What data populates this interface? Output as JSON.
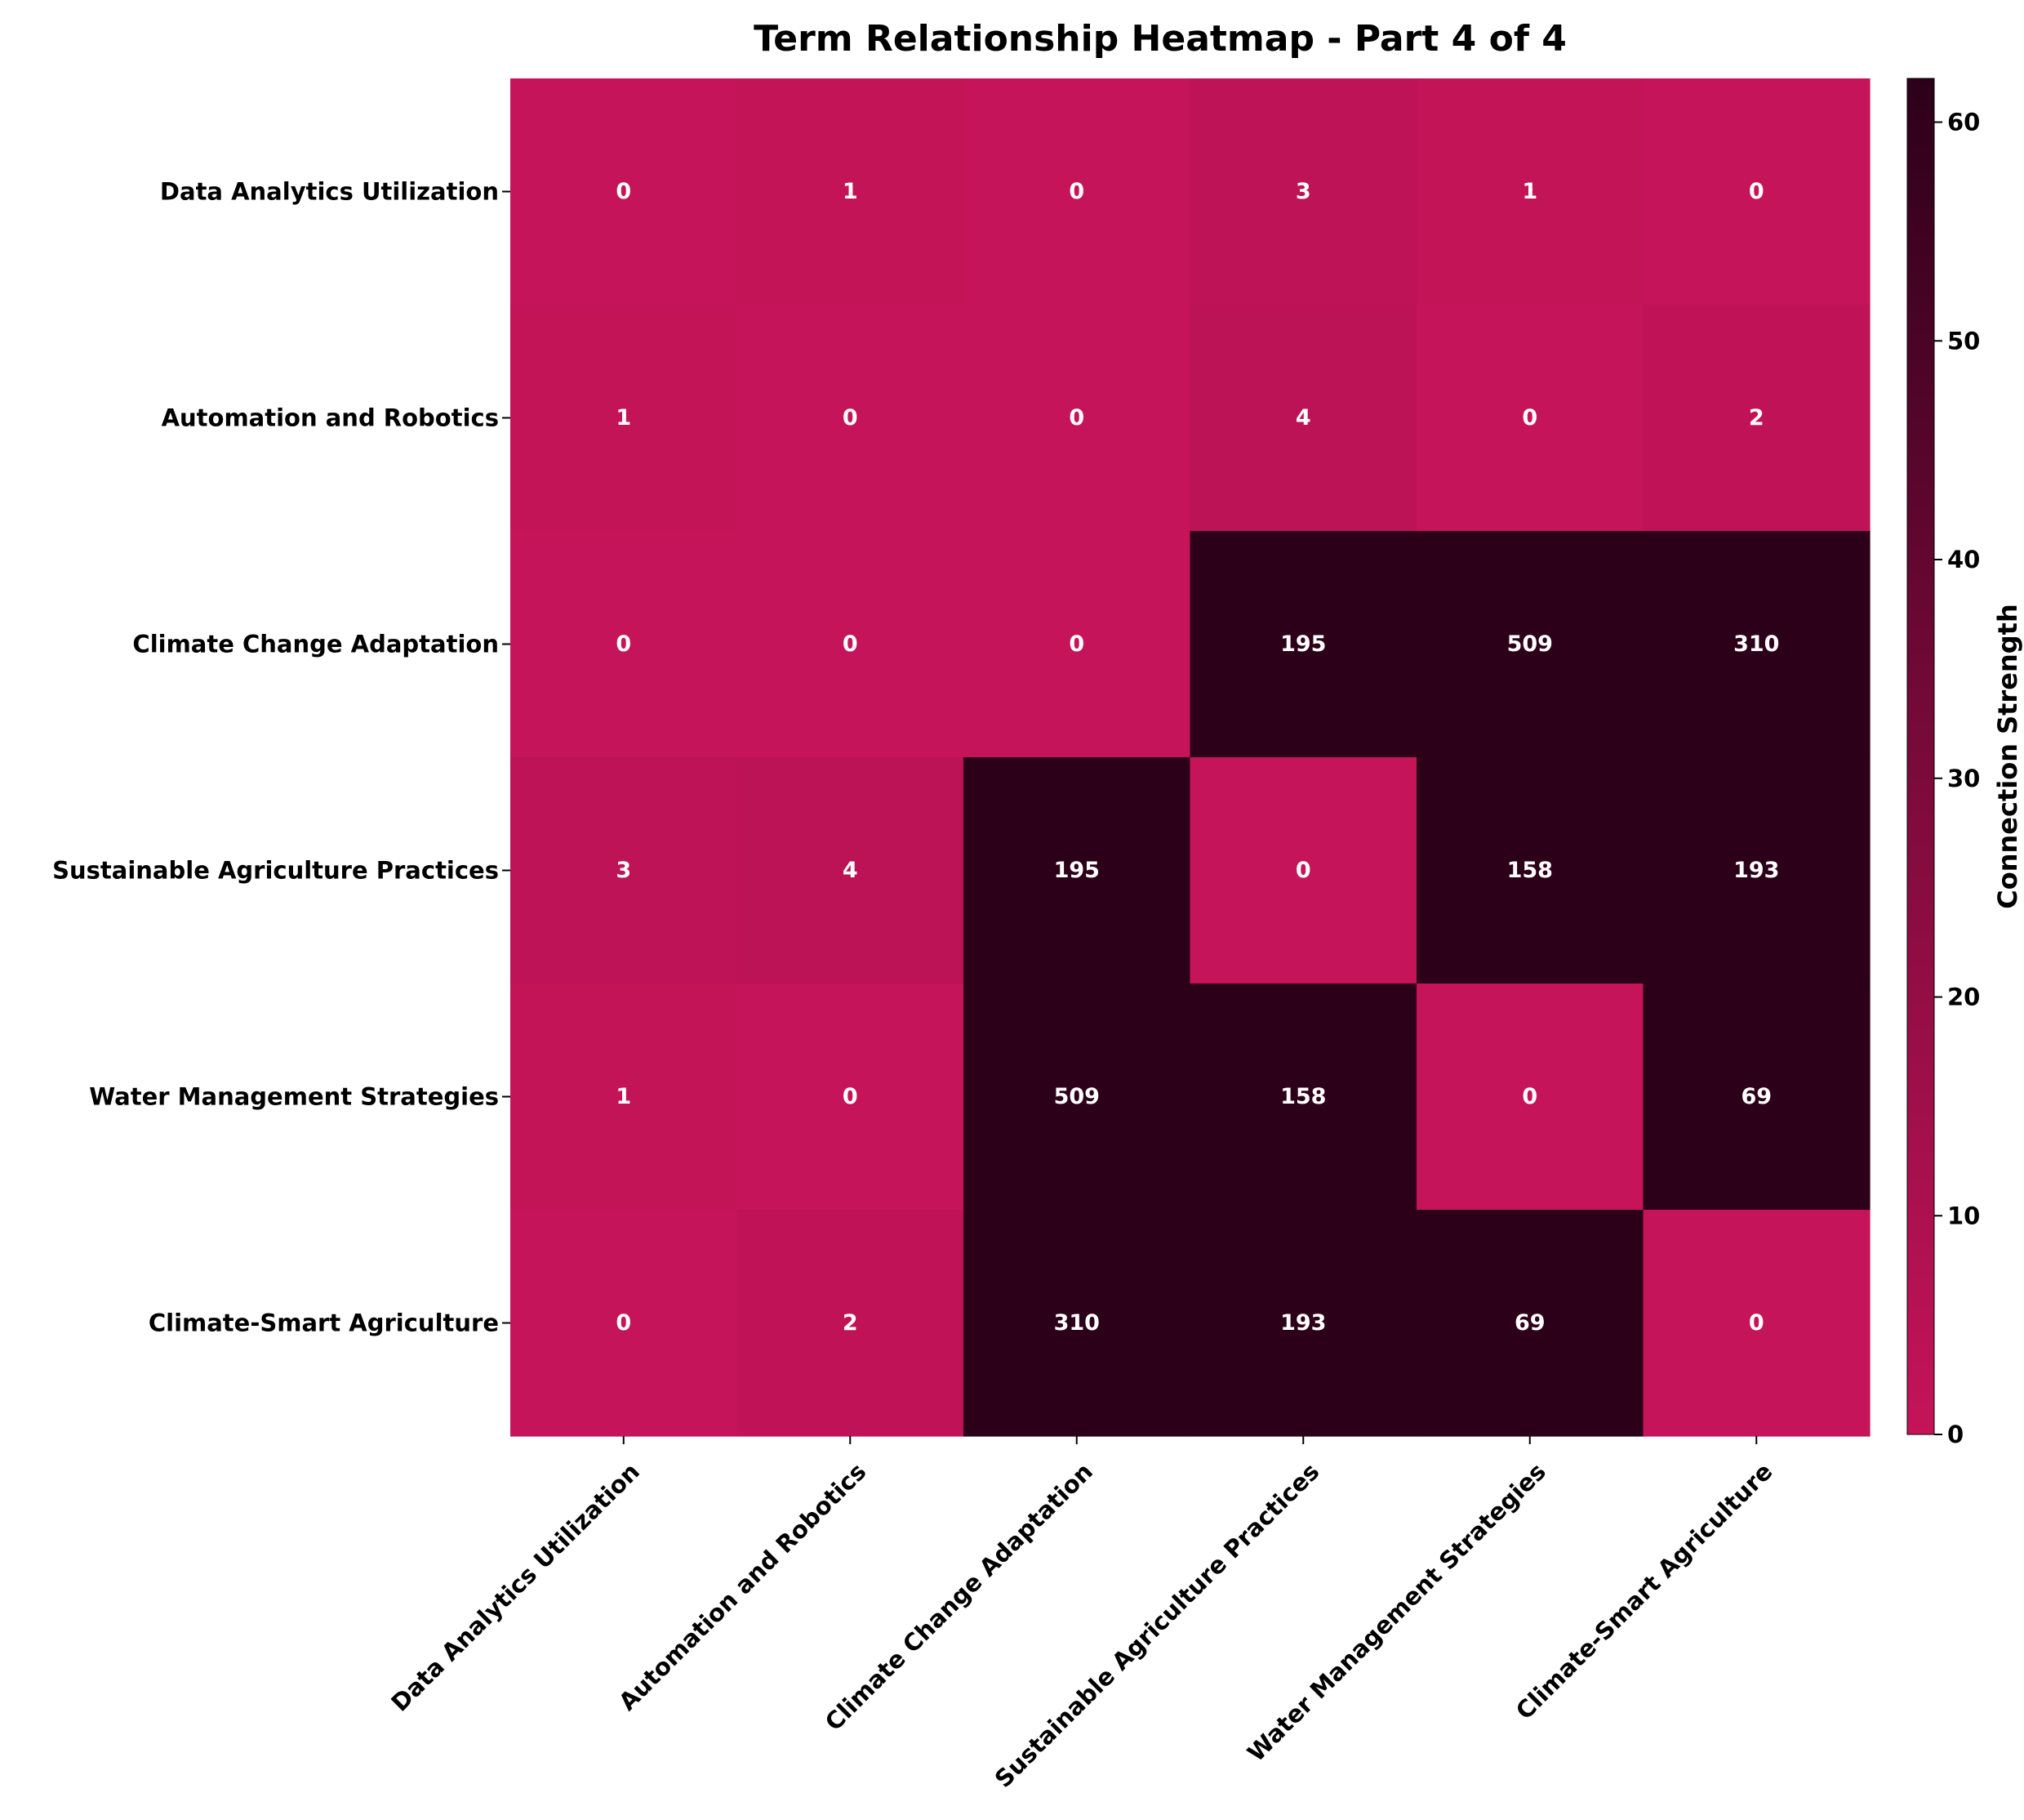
{
  "chart_data": {
    "type": "heatmap",
    "title": "Term Relationship Heatmap - Part 4 of 4",
    "row_labels": [
      "Data Analytics Utilization",
      "Automation and Robotics",
      "Climate Change Adaptation",
      "Sustainable Agriculture Practices",
      "Water Management Strategies",
      "Climate-Smart Agriculture"
    ],
    "col_labels": [
      "Data Analytics Utilization",
      "Automation and Robotics",
      "Climate Change Adaptation",
      "Sustainable Agriculture Practices",
      "Water Management Strategies",
      "Climate-Smart Agriculture"
    ],
    "values": [
      [
        0,
        1,
        0,
        3,
        1,
        0
      ],
      [
        1,
        0,
        0,
        4,
        0,
        2
      ],
      [
        0,
        0,
        0,
        195,
        509,
        310
      ],
      [
        3,
        4,
        195,
        0,
        158,
        193
      ],
      [
        1,
        0,
        509,
        158,
        0,
        69
      ],
      [
        0,
        2,
        310,
        193,
        69,
        0
      ]
    ],
    "colorbar": {
      "label": "Connection Strength",
      "range": [
        0,
        62
      ],
      "ticks": [
        "0",
        "10",
        "20",
        "30",
        "40",
        "50",
        "60"
      ],
      "tick_values": [
        0,
        10,
        20,
        30,
        40,
        50,
        60
      ],
      "color_min": "#c51459",
      "color_max": "#2d0019"
    },
    "cell_text_color": "#ffffff"
  }
}
